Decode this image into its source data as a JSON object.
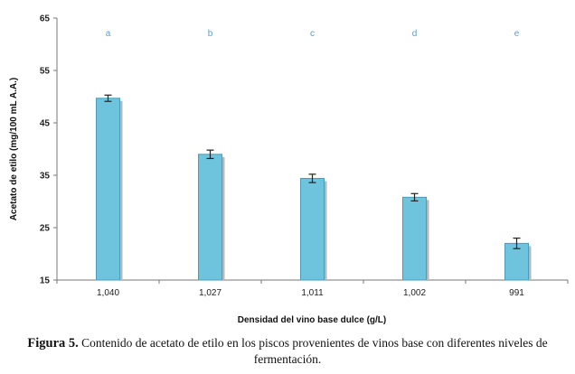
{
  "chart_data": {
    "type": "bar",
    "categories": [
      "1,040",
      "1,027",
      "1,011",
      "1,002",
      "991"
    ],
    "values": [
      49.7,
      39.0,
      34.4,
      30.8,
      22.0
    ],
    "errors": [
      0.6,
      0.8,
      0.8,
      0.7,
      1.0
    ],
    "significance_letters": [
      "a",
      "b",
      "c",
      "d",
      "e"
    ],
    "xlabel": "Densidad del vino base dulce (g/L)",
    "ylabel": "Acetato de etilo (mg/100 mL A.A.)",
    "ylim": [
      15,
      65
    ],
    "yticks": [
      "15",
      "25",
      "35",
      "45",
      "55",
      "65"
    ],
    "grid": false,
    "bar_color": "#6ec4dc",
    "bar_edge_color": "#4a9dba",
    "shadow_color": "#b8b8b8"
  },
  "caption": {
    "label": "Figura 5.",
    "text": "Contenido de acetato de etilo en los piscos provenientes de vinos base con diferentes niveles de fermentación."
  }
}
